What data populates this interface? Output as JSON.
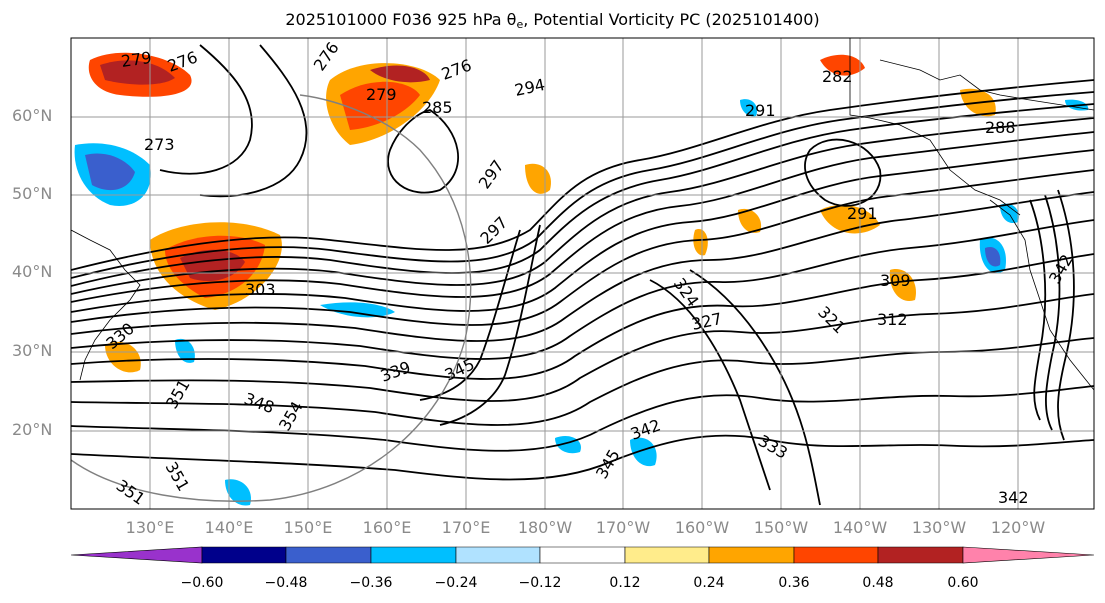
{
  "title": {
    "prefix": "2025101000 F036 925 hPa θ",
    "subscript": "e",
    "suffix": ", Potential Vorticity PC (2025101400)"
  },
  "map": {
    "latitude_labels": [
      "60°N",
      "50°N",
      "40°N",
      "30°N",
      "20°N"
    ],
    "longitude_labels": [
      "130°E",
      "140°E",
      "150°E",
      "160°E",
      "170°E",
      "180°W",
      "170°W",
      "160°W",
      "150°W",
      "140°W",
      "130°W",
      "120°W"
    ],
    "contour_labels": [
      "279",
      "276",
      "276",
      "276",
      "282",
      "279",
      "285",
      "294",
      "291",
      "288",
      "273",
      "297",
      "297",
      "291",
      "303",
      "309",
      "312",
      "324",
      "327",
      "321",
      "330",
      "339",
      "345",
      "348",
      "351",
      "351",
      "351",
      "354",
      "342",
      "333",
      "345",
      "342",
      "342"
    ],
    "colors": {
      "contour": "#000000",
      "grid": "#9a9a9a",
      "coastline": "#000000"
    }
  },
  "colorbar": {
    "tick_labels": [
      "−0.60",
      "−0.48",
      "−0.36",
      "−0.24",
      "−0.12",
      "0.12",
      "0.24",
      "0.36",
      "0.48",
      "0.60"
    ],
    "colors": [
      "#9932cc",
      "#00008b",
      "#3a5fcd",
      "#00bfff",
      "#b0e2ff",
      "#ffffff",
      "#ffec8b",
      "#ffa500",
      "#ff4500",
      "#b22222",
      "#ff82ab"
    ]
  }
}
